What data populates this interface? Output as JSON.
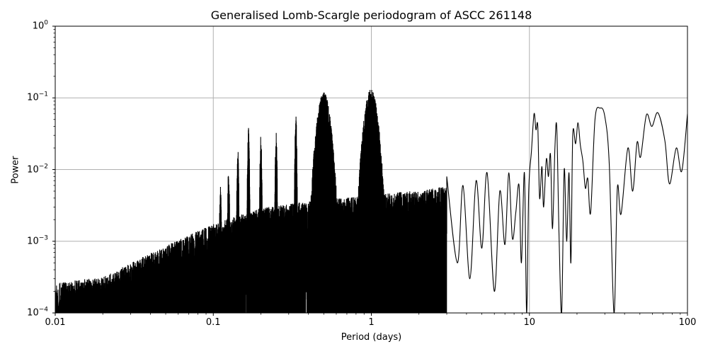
{
  "chart_data": {
    "type": "line",
    "title": "Generalised Lomb-Scargle periodogram of ASCC 261148",
    "xlabel": "Period (days)",
    "ylabel": "Power",
    "xscale": "log",
    "yscale": "log",
    "xlim": [
      0.01,
      100
    ],
    "ylim": [
      0.0001,
      1
    ],
    "grid": true,
    "legend": null,
    "line_color": "#000000",
    "grid_color": "#b0b0b0",
    "x_ticks": [
      {
        "value": 0.01,
        "label": "0.01"
      },
      {
        "value": 0.1,
        "label": "0.1"
      },
      {
        "value": 1,
        "label": "1"
      },
      {
        "value": 10,
        "label": "10"
      },
      {
        "value": 100,
        "label": "100"
      }
    ],
    "y_ticks": [
      {
        "value": 1,
        "base": "10",
        "exp": "0"
      },
      {
        "value": 0.1,
        "base": "10",
        "exp": "−1"
      },
      {
        "value": 0.01,
        "base": "10",
        "exp": "−2"
      },
      {
        "value": 0.001,
        "base": "10",
        "exp": "−3"
      },
      {
        "value": 0.0001,
        "base": "10",
        "exp": "−4"
      }
    ],
    "noise_floor_envelope": [
      {
        "period": 0.01,
        "power": 0.00018
      },
      {
        "period": 0.02,
        "power": 0.00022
      },
      {
        "period": 0.05,
        "power": 0.0006
      },
      {
        "period": 0.1,
        "power": 0.0012
      },
      {
        "period": 0.2,
        "power": 0.002
      },
      {
        "period": 0.4,
        "power": 0.0025
      },
      {
        "period": 1.0,
        "power": 0.003
      },
      {
        "period": 3.0,
        "power": 0.004
      }
    ],
    "aliases_peaks": [
      {
        "period": 0.111,
        "power": 0.0055
      },
      {
        "period": 0.125,
        "power": 0.0095
      },
      {
        "period": 0.143,
        "power": 0.018
      },
      {
        "period": 0.167,
        "power": 0.036
      },
      {
        "period": 0.2,
        "power": 0.028
      },
      {
        "period": 0.25,
        "power": 0.032
      },
      {
        "period": 0.333,
        "power": 0.055
      },
      {
        "period": 0.5,
        "power": 0.11
      },
      {
        "period": 0.995,
        "power": 0.125
      }
    ],
    "long_period_curve": [
      {
        "period": 3.0,
        "power": 0.008
      },
      {
        "period": 3.5,
        "power": 0.0005
      },
      {
        "period": 3.8,
        "power": 0.006
      },
      {
        "period": 4.2,
        "power": 0.0003
      },
      {
        "period": 4.6,
        "power": 0.007
      },
      {
        "period": 5.0,
        "power": 0.0008
      },
      {
        "period": 5.4,
        "power": 0.009
      },
      {
        "period": 6.0,
        "power": 0.0002
      },
      {
        "period": 6.5,
        "power": 0.005
      },
      {
        "period": 7.0,
        "power": 0.0009
      },
      {
        "period": 7.4,
        "power": 0.009
      },
      {
        "period": 7.8,
        "power": 0.0011
      },
      {
        "period": 8.2,
        "power": 0.0025
      },
      {
        "period": 8.6,
        "power": 0.006
      },
      {
        "period": 8.9,
        "power": 0.0005
      },
      {
        "period": 9.3,
        "power": 0.009
      },
      {
        "period": 9.6,
        "power": 0.0001
      },
      {
        "period": 9.9,
        "power": 0.005
      },
      {
        "period": 10.3,
        "power": 0.018
      },
      {
        "period": 10.7,
        "power": 0.06
      },
      {
        "period": 11.0,
        "power": 0.036
      },
      {
        "period": 11.3,
        "power": 0.04
      },
      {
        "period": 11.6,
        "power": 0.004
      },
      {
        "period": 12.0,
        "power": 0.011
      },
      {
        "period": 12.3,
        "power": 0.003
      },
      {
        "period": 12.8,
        "power": 0.014
      },
      {
        "period": 13.2,
        "power": 0.008
      },
      {
        "period": 13.6,
        "power": 0.016
      },
      {
        "period": 14.0,
        "power": 0.0015
      },
      {
        "period": 14.5,
        "power": 0.02
      },
      {
        "period": 14.9,
        "power": 0.038
      },
      {
        "period": 15.4,
        "power": 0.0012
      },
      {
        "period": 16.0,
        "power": 0.0001
      },
      {
        "period": 16.6,
        "power": 0.01
      },
      {
        "period": 17.2,
        "power": 0.001
      },
      {
        "period": 17.8,
        "power": 0.009
      },
      {
        "period": 18.3,
        "power": 0.0005
      },
      {
        "period": 18.8,
        "power": 0.03
      },
      {
        "period": 19.6,
        "power": 0.023
      },
      {
        "period": 20.3,
        "power": 0.045
      },
      {
        "period": 21.0,
        "power": 0.022
      },
      {
        "period": 21.8,
        "power": 0.013
      },
      {
        "period": 22.6,
        "power": 0.0055
      },
      {
        "period": 23.4,
        "power": 0.0075
      },
      {
        "period": 24.4,
        "power": 0.0025
      },
      {
        "period": 26.0,
        "power": 0.05
      },
      {
        "period": 28.0,
        "power": 0.072
      },
      {
        "period": 30.0,
        "power": 0.055
      },
      {
        "period": 32.0,
        "power": 0.012
      },
      {
        "period": 34.3,
        "power": 0.0001
      },
      {
        "period": 36.0,
        "power": 0.0055
      },
      {
        "period": 38.0,
        "power": 0.0024
      },
      {
        "period": 42.0,
        "power": 0.02
      },
      {
        "period": 45.0,
        "power": 0.005
      },
      {
        "period": 48.0,
        "power": 0.024
      },
      {
        "period": 50.5,
        "power": 0.015
      },
      {
        "period": 55.0,
        "power": 0.058
      },
      {
        "period": 59.5,
        "power": 0.04
      },
      {
        "period": 65.0,
        "power": 0.062
      },
      {
        "period": 72.0,
        "power": 0.025
      },
      {
        "period": 77.0,
        "power": 0.0063
      },
      {
        "period": 85.0,
        "power": 0.02
      },
      {
        "period": 92.0,
        "power": 0.0095
      },
      {
        "period": 100.0,
        "power": 0.06
      }
    ]
  }
}
